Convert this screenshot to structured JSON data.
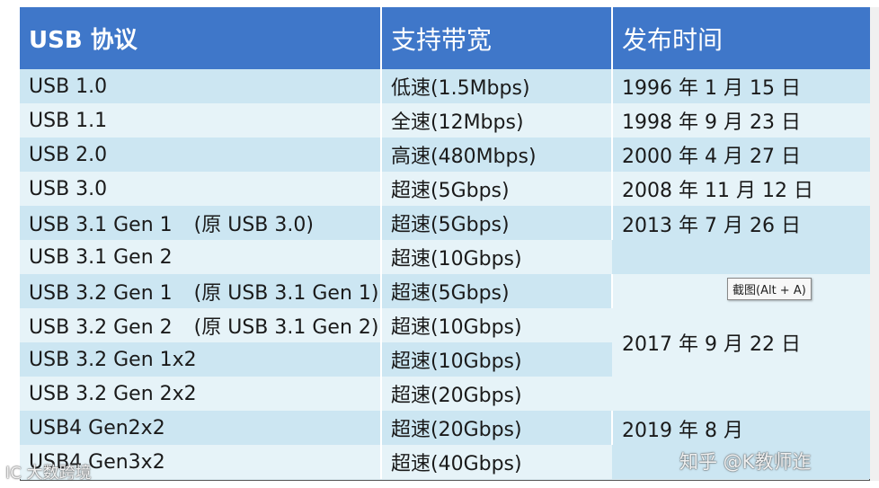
{
  "table": {
    "headers": [
      "USB 协议",
      "支持带宽",
      "发布时间"
    ],
    "rows": [
      {
        "protocol": "USB 1.0",
        "alt": "",
        "bandwidth": "低速(1.5Mbps)",
        "date": "1996 年 1 月 15 日"
      },
      {
        "protocol": "USB 1.1",
        "alt": "",
        "bandwidth": "全速(12Mbps)",
        "date": "1998 年 9 月 23 日"
      },
      {
        "protocol": "USB 2.0",
        "alt": "",
        "bandwidth": "高速(480Mbps)",
        "date": "2000 年 4 月 27 日"
      },
      {
        "protocol": "USB 3.0",
        "alt": "",
        "bandwidth": "超速(5Gbps)",
        "date": "2008 年 11 月 12 日"
      },
      {
        "protocol": "USB 3.1 Gen 1",
        "alt": "(原 USB 3.0)",
        "bandwidth": "超速(5Gbps)",
        "date": "2013 年 7 月 26 日"
      },
      {
        "protocol": "USB 3.1 Gen 2",
        "alt": "",
        "bandwidth": "超速(10Gbps)",
        "date": ""
      },
      {
        "protocol": "USB 3.2 Gen 1",
        "alt": "(原 USB 3.1 Gen 1)",
        "bandwidth": "超速(5Gbps)",
        "date": "2017 年 9 月 22 日"
      },
      {
        "protocol": "USB 3.2 Gen 2",
        "alt": "(原 USB 3.1 Gen 2)",
        "bandwidth": "超速(10Gbps)",
        "date": ""
      },
      {
        "protocol": "USB 3.2 Gen 1x2",
        "alt": "",
        "bandwidth": "超速(10Gbps)",
        "date": ""
      },
      {
        "protocol": "USB 3.2 Gen 2x2",
        "alt": "",
        "bandwidth": "超速(20Gbps)",
        "date": ""
      },
      {
        "protocol": "USB4 Gen2x2",
        "alt": "",
        "bandwidth": "超速(20Gbps)",
        "date": "2019 年 8 月"
      },
      {
        "protocol": "USB4 Gen3x2",
        "alt": "",
        "bandwidth": "超速(40Gbps)",
        "date": ""
      }
    ]
  },
  "tooltip": "截图(Alt + A)",
  "watermarks": {
    "right": "知乎 @K教师迮",
    "left": "IC 大数跨境"
  }
}
